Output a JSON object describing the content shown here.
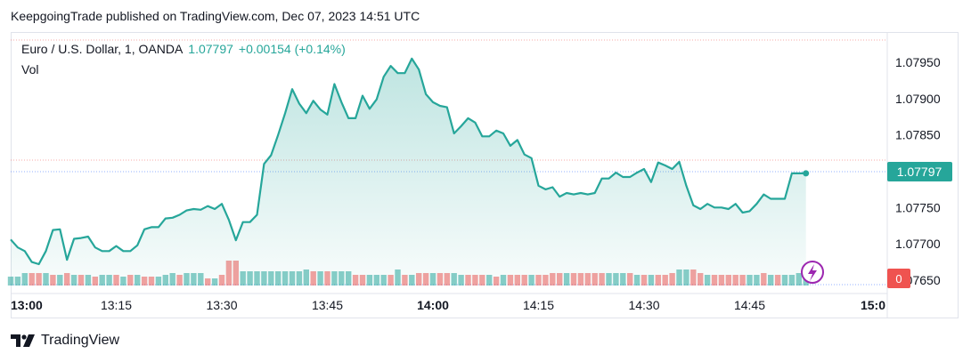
{
  "header": {
    "publish_text": "KeepgoingTrade published on TradingView.com, Dec 07, 2023 14:51 UTC"
  },
  "legend": {
    "symbol": "Euro / U.S. Dollar, 1, OANDA",
    "last": "1.07797",
    "change": "+0.00154 (+0.14%)",
    "volume_label": "Vol"
  },
  "price_tag": "1.07797",
  "volume_tag": "0",
  "brand": {
    "name": "TradingView",
    "logo_icon": "tradingview-logo-icon"
  },
  "colors": {
    "line": "#26a69a",
    "up": "#26a69a",
    "down": "#ef5350",
    "accent_badge": "#9c27b0"
  },
  "chart_data": {
    "type": "area",
    "title": "Euro / U.S. Dollar, 1, OANDA",
    "x_ticks": [
      "13:00",
      "13:15",
      "13:30",
      "13:45",
      "14:00",
      "14:15",
      "14:30",
      "14:45",
      "15:0"
    ],
    "x_tick_minutes": [
      0,
      15,
      30,
      45,
      60,
      75,
      90,
      105,
      120
    ],
    "y_ticks": [
      "1.07950",
      "1.07900",
      "1.07850",
      "1.07800",
      "1.07750",
      "1.07700",
      "1.07650"
    ],
    "ylim": [
      1.0765,
      1.0797
    ],
    "grid": false,
    "series": [
      {
        "name": "EURUSD",
        "x_minutes": [
          0,
          1,
          2,
          3,
          4,
          5,
          6,
          7,
          8,
          9,
          10,
          11,
          12,
          13,
          14,
          15,
          16,
          17,
          18,
          19,
          20,
          21,
          22,
          23,
          24,
          25,
          26,
          27,
          28,
          29,
          30,
          31,
          32,
          33,
          34,
          35,
          36,
          37,
          38,
          39,
          40,
          41,
          42,
          43,
          44,
          45,
          46,
          47,
          48,
          49,
          50,
          51,
          52,
          53,
          54,
          55,
          56,
          57,
          58,
          59,
          60,
          61,
          62,
          63,
          64,
          65,
          66,
          67,
          68,
          69,
          70,
          71,
          72,
          73,
          74,
          75,
          76,
          77,
          78,
          79,
          80,
          81,
          82,
          83,
          84,
          85,
          86,
          87,
          88,
          89,
          90,
          91,
          92,
          93,
          94,
          95,
          96,
          97,
          98,
          99,
          100,
          101,
          102,
          103,
          104,
          105,
          106,
          107,
          108,
          109,
          110,
          111,
          112,
          113
        ],
        "values": [
          1.07706,
          1.07695,
          1.0769,
          1.07675,
          1.07672,
          1.0769,
          1.07719,
          1.0772,
          1.07678,
          1.07707,
          1.07708,
          1.0771,
          1.07695,
          1.0769,
          1.0769,
          1.07697,
          1.0769,
          1.0769,
          1.07698,
          1.0772,
          1.07723,
          1.07723,
          1.07735,
          1.07736,
          1.0774,
          1.07746,
          1.07748,
          1.07747,
          1.07752,
          1.07748,
          1.07755,
          1.07733,
          1.07705,
          1.0773,
          1.0773,
          1.0774,
          1.0781,
          1.07822,
          1.0785,
          1.0788,
          1.07913,
          1.07893,
          1.0788,
          1.07897,
          1.07885,
          1.07878,
          1.0792,
          1.07895,
          1.07873,
          1.07873,
          1.07904,
          1.07886,
          1.07899,
          1.0793,
          1.07945,
          1.07935,
          1.07935,
          1.07955,
          1.0794,
          1.07906,
          1.07895,
          1.0789,
          1.07888,
          1.07852,
          1.07862,
          1.07873,
          1.07867,
          1.07848,
          1.07848,
          1.07856,
          1.07852,
          1.07835,
          1.07843,
          1.07823,
          1.07818,
          1.0778,
          1.07775,
          1.07778,
          1.07765,
          1.0777,
          1.07768,
          1.0777,
          1.07768,
          1.0777,
          1.0779,
          1.0779,
          1.07798,
          1.07792,
          1.07792,
          1.07798,
          1.07803,
          1.07785,
          1.07812,
          1.07808,
          1.07803,
          1.07813,
          1.0778,
          1.07753,
          1.07748,
          1.07755,
          1.0775,
          1.0775,
          1.07748,
          1.07755,
          1.07743,
          1.07745,
          1.07755,
          1.07768,
          1.07762,
          1.07762,
          1.07762,
          1.07797,
          1.07797,
          1.07797
        ]
      }
    ],
    "volume": {
      "colors": [
        "up",
        "up",
        "up",
        "down",
        "down",
        "up",
        "down",
        "up",
        "down",
        "up",
        "down",
        "up",
        "down",
        "up",
        "up",
        "down",
        "up",
        "down",
        "up",
        "down",
        "down",
        "up",
        "up",
        "up",
        "down",
        "up",
        "up",
        "up",
        "down",
        "up",
        "down",
        "down",
        "down",
        "up",
        "up",
        "up",
        "up",
        "up",
        "up",
        "up",
        "up",
        "up",
        "up",
        "down",
        "up",
        "down",
        "up",
        "up",
        "up",
        "down",
        "down",
        "up",
        "up",
        "up",
        "down",
        "up",
        "down",
        "up",
        "down",
        "down",
        "up",
        "down",
        "down",
        "up",
        "up",
        "down",
        "down",
        "down",
        "up",
        "down",
        "up",
        "down",
        "down",
        "down",
        "up",
        "down",
        "down",
        "down",
        "down",
        "up",
        "down",
        "down",
        "down",
        "down",
        "down",
        "up",
        "up",
        "up",
        "down",
        "up",
        "down",
        "up",
        "down",
        "down",
        "down",
        "up",
        "up",
        "down",
        "down",
        "up",
        "down",
        "down",
        "down",
        "down",
        "down",
        "up",
        "up",
        "down",
        "up",
        "down",
        "up",
        "up",
        "up",
        "up"
      ],
      "heights": [
        10,
        10,
        14,
        14,
        14,
        14,
        12,
        12,
        14,
        12,
        12,
        12,
        10,
        12,
        12,
        12,
        10,
        12,
        12,
        10,
        10,
        10,
        12,
        14,
        12,
        14,
        14,
        14,
        8,
        8,
        12,
        28,
        28,
        16,
        16,
        16,
        16,
        16,
        16,
        16,
        16,
        16,
        18,
        16,
        16,
        16,
        16,
        16,
        16,
        12,
        12,
        12,
        12,
        12,
        12,
        18,
        12,
        12,
        14,
        14,
        14,
        14,
        14,
        14,
        12,
        12,
        12,
        12,
        12,
        10,
        12,
        12,
        12,
        12,
        12,
        12,
        12,
        14,
        14,
        14,
        14,
        14,
        14,
        14,
        14,
        14,
        14,
        14,
        14,
        12,
        12,
        12,
        12,
        12,
        14,
        18,
        18,
        18,
        14,
        12,
        12,
        12,
        12,
        12,
        12,
        12,
        12,
        14,
        12,
        12,
        12,
        12,
        14,
        14
      ]
    }
  }
}
